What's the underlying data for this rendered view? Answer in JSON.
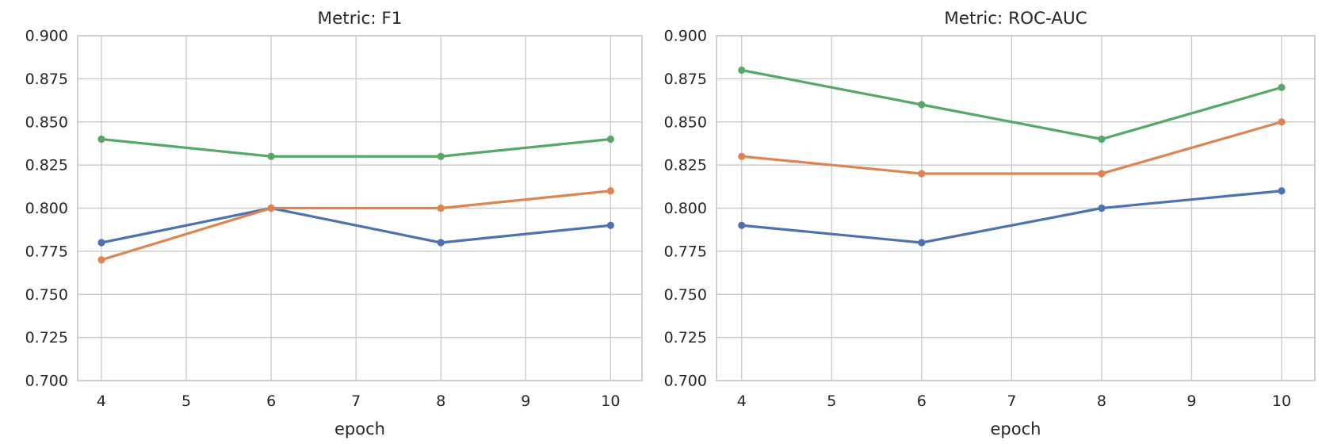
{
  "figure": {
    "background": "#ffffff",
    "text_color": "#262626",
    "grid_color": "#cccccc",
    "spine_color": "#cccccc"
  },
  "chart_data": [
    {
      "type": "line",
      "title": "Metric: F1",
      "xlabel": "epoch",
      "ylabel": "",
      "x": [
        4,
        6,
        8,
        10
      ],
      "series": [
        {
          "name": "blue",
          "color": "#4C72B0",
          "values": [
            0.78,
            0.8,
            0.78,
            0.79
          ]
        },
        {
          "name": "orange",
          "color": "#DD8452",
          "values": [
            0.77,
            0.8,
            0.8,
            0.81
          ]
        },
        {
          "name": "green",
          "color": "#55A868",
          "values": [
            0.84,
            0.83,
            0.83,
            0.84
          ]
        }
      ],
      "xticks": [
        "4",
        "5",
        "6",
        "7",
        "8",
        "9",
        "10"
      ],
      "yticks": [
        "0.700",
        "0.725",
        "0.750",
        "0.775",
        "0.800",
        "0.825",
        "0.850",
        "0.875",
        "0.900"
      ],
      "xlim": [
        3.72,
        10.37
      ],
      "ylim": [
        0.7,
        0.9
      ],
      "grid": true,
      "legend": "none",
      "markers": true
    },
    {
      "type": "line",
      "title": "Metric: ROC-AUC",
      "xlabel": "epoch",
      "ylabel": "",
      "x": [
        4,
        6,
        8,
        10
      ],
      "series": [
        {
          "name": "blue",
          "color": "#4C72B0",
          "values": [
            0.79,
            0.78,
            0.8,
            0.81
          ]
        },
        {
          "name": "orange",
          "color": "#DD8452",
          "values": [
            0.83,
            0.82,
            0.82,
            0.85
          ]
        },
        {
          "name": "green",
          "color": "#55A868",
          "values": [
            0.88,
            0.86,
            0.84,
            0.87
          ]
        }
      ],
      "xticks": [
        "4",
        "5",
        "6",
        "7",
        "8",
        "9",
        "10"
      ],
      "yticks": [
        "0.700",
        "0.725",
        "0.750",
        "0.775",
        "0.800",
        "0.825",
        "0.850",
        "0.875",
        "0.900"
      ],
      "xlim": [
        3.72,
        10.37
      ],
      "ylim": [
        0.7,
        0.9
      ],
      "grid": true,
      "legend": "none",
      "markers": true
    }
  ]
}
